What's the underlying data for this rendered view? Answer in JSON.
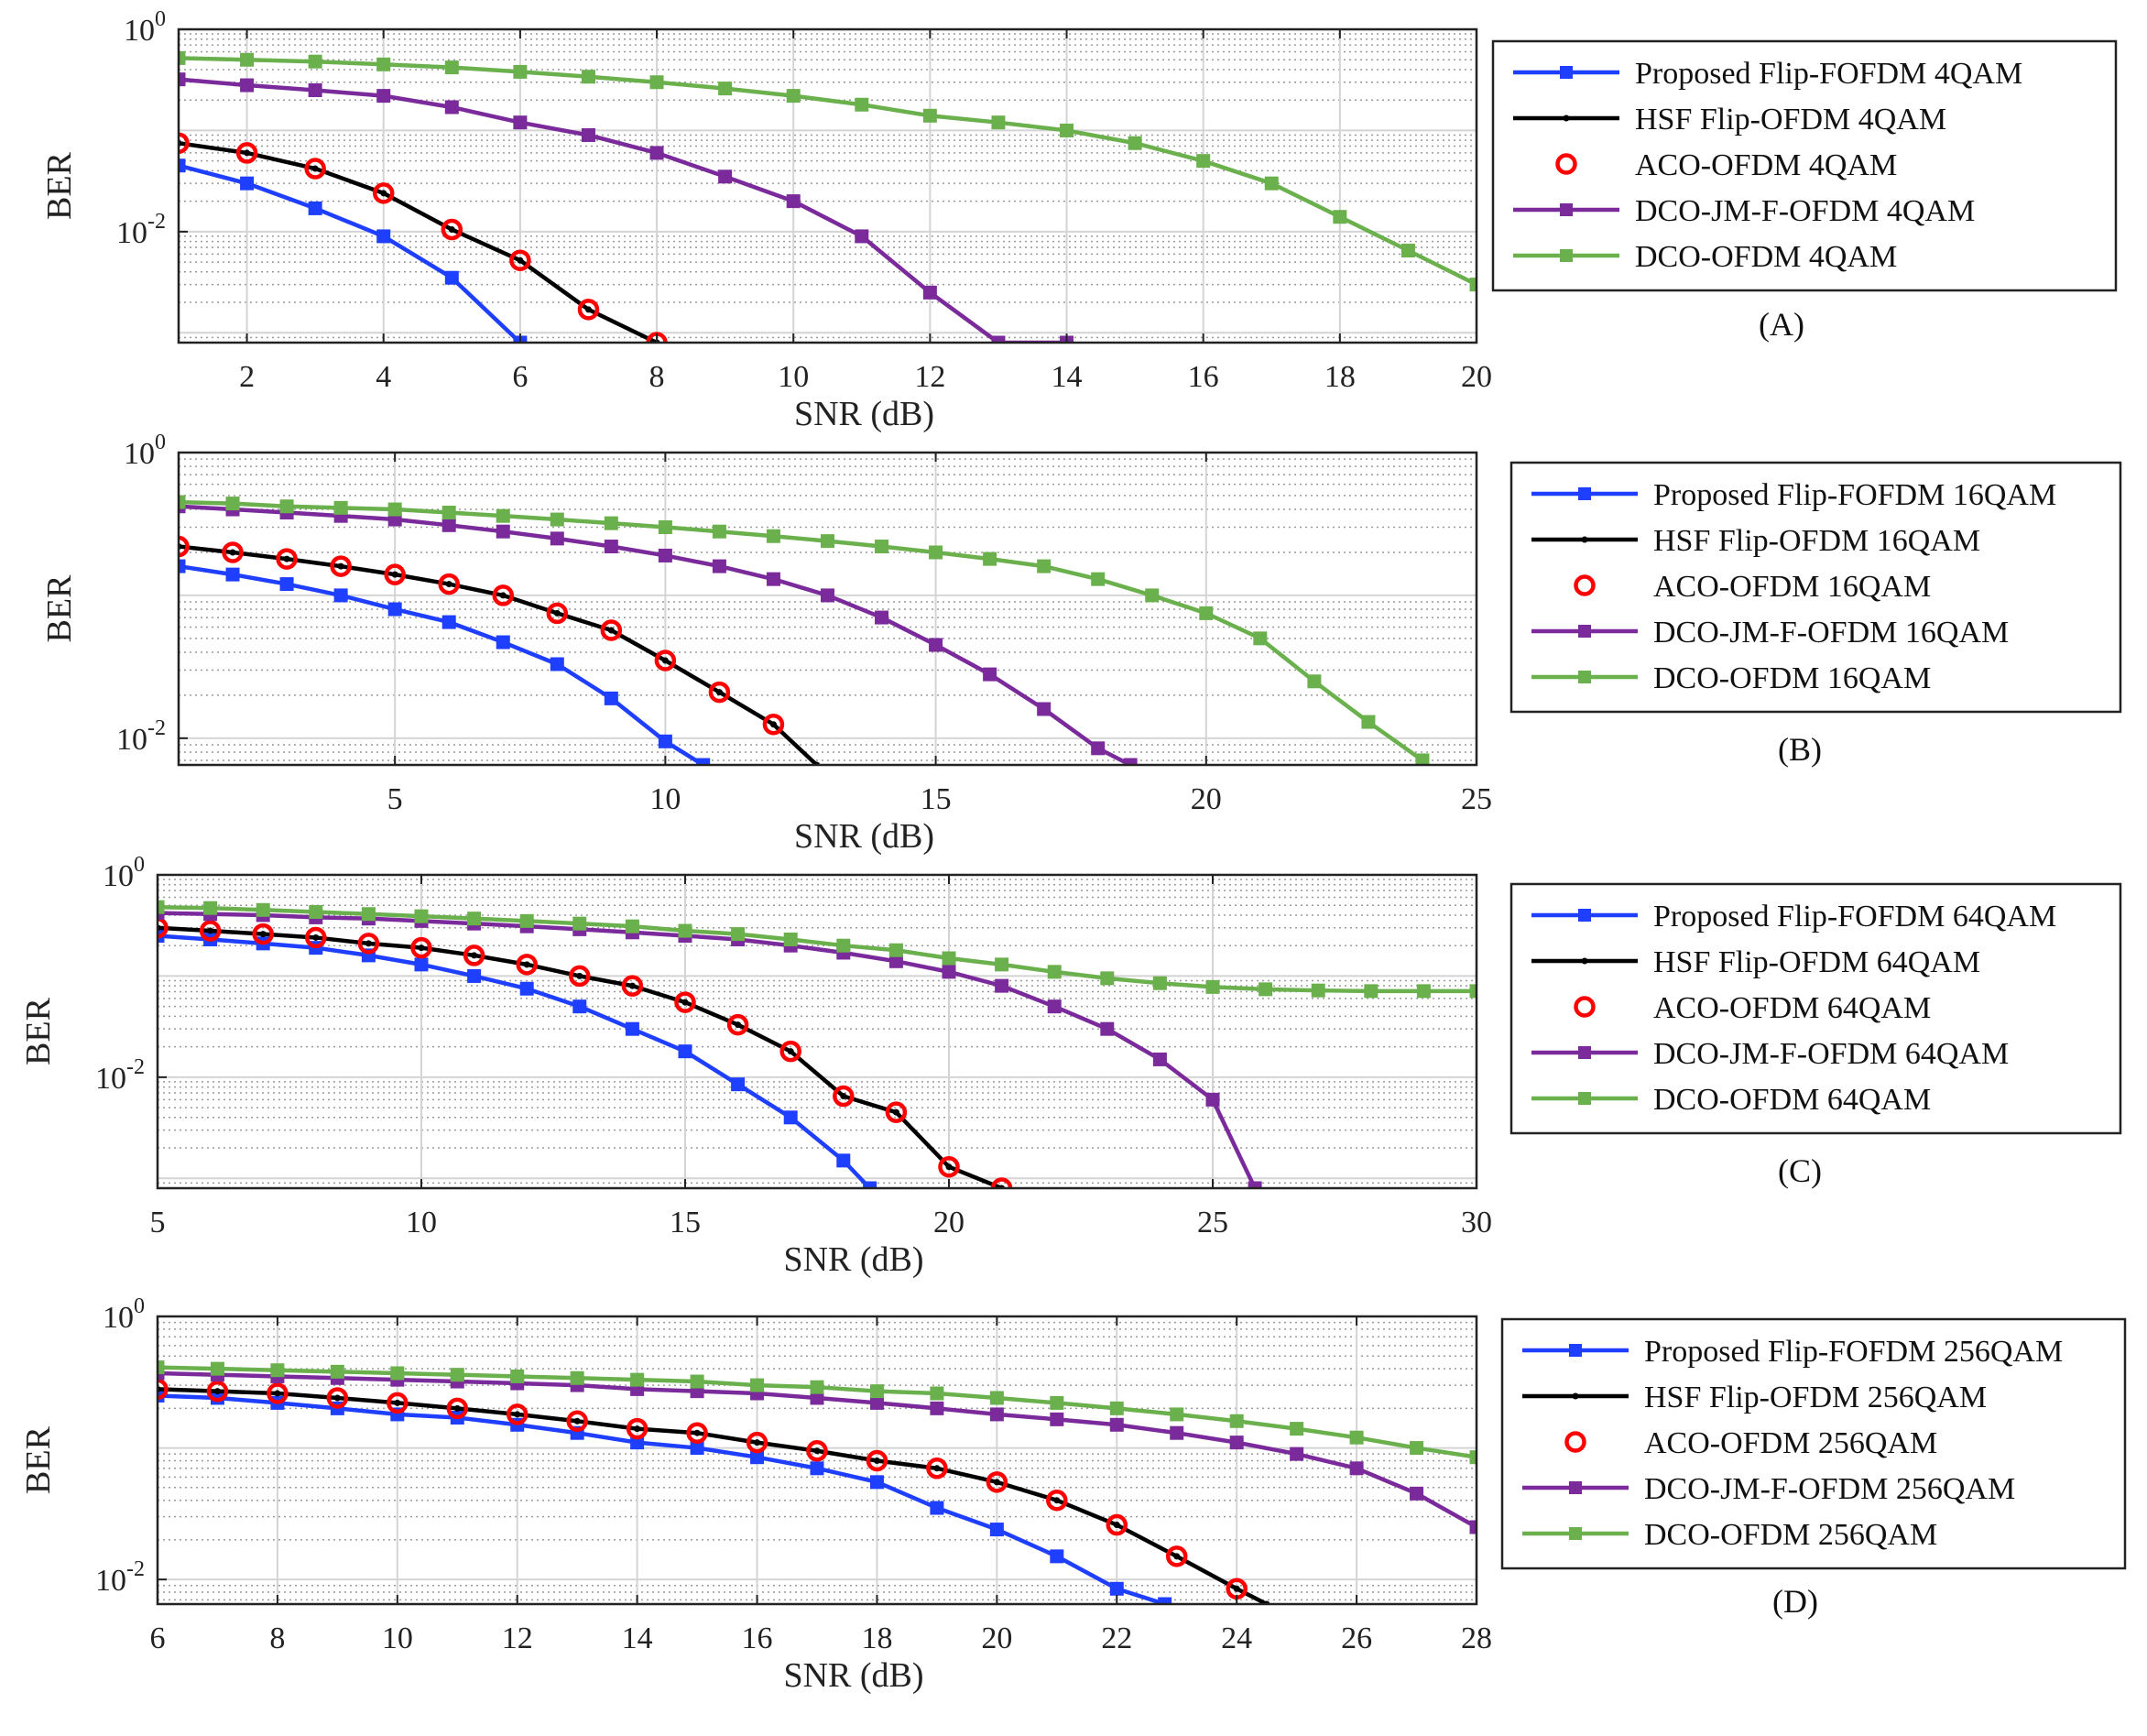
{
  "chart_data": [
    {
      "type": "line",
      "panel_label": "(A)",
      "xlabel": "SNR (dB)",
      "ylabel": "BER",
      "yscale": "log",
      "xlim": [
        1,
        20
      ],
      "ylim": [
        0.0008,
        1
      ],
      "xticks": [
        2,
        4,
        6,
        8,
        10,
        12,
        14,
        16,
        18,
        20
      ],
      "xtick_labels": [
        "2",
        "4",
        "6",
        "8",
        "10",
        "12",
        "14",
        "16",
        "18",
        "20"
      ],
      "ytick_labels": [
        {
          "base": "10",
          "exp": "0"
        },
        {
          "base": "10",
          "exp": "-2"
        }
      ],
      "grid": true,
      "legend_position": "right",
      "series": [
        {
          "name": "Proposed Flip-FOFDM 4QAM",
          "color": "#1f3fff",
          "marker": "square",
          "x": [
            1,
            2,
            3,
            4,
            5,
            6
          ],
          "values": [
            0.045,
            0.03,
            0.017,
            0.009,
            0.0035,
            0.0008
          ]
        },
        {
          "name": "HSF Flip-OFDM 4QAM",
          "color": "#000000",
          "marker": "dot",
          "x": [
            1,
            2,
            3,
            4,
            5,
            6,
            7,
            8
          ],
          "values": [
            0.075,
            0.06,
            0.042,
            0.024,
            0.0105,
            0.0052,
            0.0017,
            0.0008
          ]
        },
        {
          "name": "ACO-OFDM 4QAM",
          "color": "#ff0000",
          "marker": "circle",
          "line": false,
          "x": [
            1,
            2,
            3,
            4,
            5,
            6,
            7,
            8
          ],
          "values": [
            0.075,
            0.06,
            0.042,
            0.024,
            0.0105,
            0.0052,
            0.0017,
            0.0008
          ]
        },
        {
          "name": "DCO-JM-F-OFDM 4QAM",
          "color": "#7a2a9a",
          "marker": "square",
          "x": [
            1,
            2,
            3,
            4,
            5,
            6,
            7,
            8,
            9,
            10,
            11,
            12,
            13,
            14
          ],
          "values": [
            0.32,
            0.28,
            0.25,
            0.22,
            0.17,
            0.12,
            0.09,
            0.06,
            0.035,
            0.02,
            0.009,
            0.0025,
            0.0008,
            0.0008
          ]
        },
        {
          "name": "DCO-OFDM 4QAM",
          "color": "#6ab04c",
          "marker": "square",
          "x": [
            1,
            2,
            3,
            4,
            5,
            6,
            7,
            8,
            9,
            10,
            11,
            12,
            13,
            14,
            15,
            16,
            17,
            18,
            19,
            20
          ],
          "values": [
            0.52,
            0.5,
            0.48,
            0.45,
            0.42,
            0.38,
            0.34,
            0.3,
            0.26,
            0.22,
            0.18,
            0.14,
            0.12,
            0.1,
            0.075,
            0.05,
            0.03,
            0.014,
            0.0065,
            0.003
          ]
        }
      ]
    },
    {
      "type": "line",
      "panel_label": "(B)",
      "xlabel": "SNR (dB)",
      "ylabel": "BER",
      "yscale": "log",
      "xlim": [
        1,
        25
      ],
      "ylim": [
        0.0065,
        1
      ],
      "xticks": [
        5,
        10,
        15,
        20,
        25
      ],
      "xtick_labels": [
        "5",
        "10",
        "15",
        "20",
        "25"
      ],
      "ytick_labels": [
        {
          "base": "10",
          "exp": "0"
        },
        {
          "base": "10",
          "exp": "-2"
        }
      ],
      "grid": true,
      "legend_position": "right",
      "series": [
        {
          "name": "Proposed Flip-FOFDM 16QAM",
          "color": "#1f3fff",
          "marker": "square",
          "x": [
            1,
            2,
            3,
            4,
            5,
            6,
            7,
            8,
            9,
            10,
            10.7
          ],
          "values": [
            0.16,
            0.14,
            0.12,
            0.1,
            0.08,
            0.065,
            0.047,
            0.033,
            0.019,
            0.0095,
            0.0065
          ]
        },
        {
          "name": "HSF Flip-OFDM 16QAM",
          "color": "#000000",
          "marker": "dot",
          "x": [
            1,
            2,
            3,
            4,
            5,
            6,
            7,
            8,
            9,
            10,
            11,
            12,
            12.8
          ],
          "values": [
            0.22,
            0.2,
            0.18,
            0.16,
            0.14,
            0.12,
            0.1,
            0.075,
            0.057,
            0.035,
            0.021,
            0.0125,
            0.0065
          ]
        },
        {
          "name": "ACO-OFDM 16QAM",
          "color": "#ff0000",
          "marker": "circle",
          "line": false,
          "x": [
            1,
            2,
            3,
            4,
            5,
            6,
            7,
            8,
            9,
            10,
            11,
            12
          ],
          "values": [
            0.22,
            0.2,
            0.18,
            0.16,
            0.14,
            0.12,
            0.1,
            0.075,
            0.057,
            0.035,
            0.021,
            0.0125
          ]
        },
        {
          "name": "DCO-JM-F-OFDM 16QAM",
          "color": "#7a2a9a",
          "marker": "square",
          "x": [
            1,
            2,
            3,
            4,
            5,
            6,
            7,
            8,
            9,
            10,
            11,
            12,
            13,
            14,
            15,
            16,
            17,
            18,
            18.6
          ],
          "values": [
            0.42,
            0.4,
            0.38,
            0.36,
            0.34,
            0.31,
            0.28,
            0.25,
            0.22,
            0.19,
            0.16,
            0.13,
            0.1,
            0.07,
            0.045,
            0.028,
            0.016,
            0.0085,
            0.0065
          ]
        },
        {
          "name": "DCO-OFDM 16QAM",
          "color": "#6ab04c",
          "marker": "square",
          "x": [
            1,
            2,
            3,
            4,
            5,
            6,
            7,
            8,
            9,
            10,
            11,
            12,
            13,
            14,
            15,
            16,
            17,
            18,
            19,
            20,
            21,
            22,
            23,
            24
          ],
          "values": [
            0.45,
            0.44,
            0.42,
            0.41,
            0.4,
            0.38,
            0.36,
            0.34,
            0.32,
            0.3,
            0.28,
            0.26,
            0.24,
            0.22,
            0.2,
            0.18,
            0.16,
            0.13,
            0.1,
            0.075,
            0.05,
            0.025,
            0.013,
            0.007
          ]
        }
      ]
    },
    {
      "type": "line",
      "panel_label": "(C)",
      "xlabel": "SNR (dB)",
      "ylabel": "BER",
      "yscale": "log",
      "xlim": [
        5,
        30
      ],
      "ylim": [
        0.0008,
        1
      ],
      "xticks": [
        5,
        10,
        15,
        20,
        25,
        30
      ],
      "xtick_labels": [
        "5",
        "10",
        "15",
        "20",
        "25",
        "30"
      ],
      "ytick_labels": [
        {
          "base": "10",
          "exp": "0"
        },
        {
          "base": "10",
          "exp": "-2"
        }
      ],
      "grid": true,
      "legend_position": "right",
      "series": [
        {
          "name": "Proposed Flip-FOFDM 64QAM",
          "color": "#1f3fff",
          "marker": "square",
          "x": [
            5,
            6,
            7,
            8,
            9,
            10,
            11,
            12,
            13,
            14,
            15,
            16,
            17,
            18,
            18.5
          ],
          "values": [
            0.25,
            0.23,
            0.21,
            0.19,
            0.16,
            0.13,
            0.1,
            0.075,
            0.05,
            0.03,
            0.018,
            0.0085,
            0.004,
            0.0015,
            0.0008
          ]
        },
        {
          "name": "HSF Flip-OFDM 64QAM",
          "color": "#000000",
          "marker": "dot",
          "x": [
            5,
            6,
            7,
            8,
            9,
            10,
            11,
            12,
            13,
            14,
            15,
            16,
            17,
            18,
            19,
            20,
            21
          ],
          "values": [
            0.3,
            0.28,
            0.26,
            0.24,
            0.21,
            0.19,
            0.16,
            0.13,
            0.1,
            0.08,
            0.055,
            0.033,
            0.018,
            0.0065,
            0.0045,
            0.0013,
            0.0008
          ]
        },
        {
          "name": "ACO-OFDM 64QAM",
          "color": "#ff0000",
          "marker": "circle",
          "line": false,
          "x": [
            5,
            6,
            7,
            8,
            9,
            10,
            11,
            12,
            13,
            14,
            15,
            16,
            17,
            18,
            19,
            20,
            21
          ],
          "values": [
            0.3,
            0.28,
            0.26,
            0.24,
            0.21,
            0.19,
            0.16,
            0.13,
            0.1,
            0.08,
            0.055,
            0.033,
            0.018,
            0.0065,
            0.0045,
            0.0013,
            0.0008
          ]
        },
        {
          "name": "DCO-JM-F-OFDM 64QAM",
          "color": "#7a2a9a",
          "marker": "square",
          "x": [
            5,
            6,
            7,
            8,
            9,
            10,
            11,
            12,
            13,
            14,
            15,
            16,
            17,
            18,
            19,
            20,
            21,
            22,
            23,
            24,
            25,
            25.8
          ],
          "values": [
            0.42,
            0.41,
            0.4,
            0.38,
            0.37,
            0.35,
            0.33,
            0.31,
            0.29,
            0.27,
            0.25,
            0.23,
            0.2,
            0.17,
            0.14,
            0.11,
            0.08,
            0.05,
            0.03,
            0.015,
            0.006,
            0.0008
          ]
        },
        {
          "name": "DCO-OFDM 64QAM",
          "color": "#6ab04c",
          "marker": "square",
          "x": [
            5,
            6,
            7,
            8,
            9,
            10,
            11,
            12,
            13,
            14,
            15,
            16,
            17,
            18,
            19,
            20,
            21,
            22,
            23,
            24,
            25,
            26,
            27,
            28,
            29,
            30
          ],
          "values": [
            0.48,
            0.47,
            0.45,
            0.43,
            0.41,
            0.39,
            0.37,
            0.35,
            0.33,
            0.31,
            0.28,
            0.26,
            0.23,
            0.2,
            0.18,
            0.15,
            0.13,
            0.11,
            0.095,
            0.085,
            0.078,
            0.074,
            0.072,
            0.071,
            0.071,
            0.071
          ]
        }
      ]
    },
    {
      "type": "line",
      "panel_label": "(D)",
      "xlabel": "SNR (dB)",
      "ylabel": "BER",
      "yscale": "log",
      "xlim": [
        6,
        28
      ],
      "ylim": [
        0.0065,
        1
      ],
      "xticks": [
        6,
        8,
        10,
        12,
        14,
        16,
        18,
        20,
        22,
        24,
        26,
        28
      ],
      "xtick_labels": [
        "6",
        "8",
        "10",
        "12",
        "14",
        "16",
        "18",
        "20",
        "22",
        "24",
        "26",
        "28"
      ],
      "ytick_labels": [
        {
          "base": "10",
          "exp": "0"
        },
        {
          "base": "10",
          "exp": "-2"
        }
      ],
      "grid": true,
      "legend_position": "right",
      "series": [
        {
          "name": "Proposed Flip-FOFDM 256QAM",
          "color": "#1f3fff",
          "marker": "square",
          "x": [
            6,
            7,
            8,
            9,
            10,
            11,
            12,
            13,
            14,
            15,
            16,
            17,
            18,
            19,
            20,
            21,
            22,
            22.8
          ],
          "values": [
            0.25,
            0.24,
            0.22,
            0.2,
            0.18,
            0.17,
            0.15,
            0.13,
            0.11,
            0.1,
            0.085,
            0.07,
            0.055,
            0.035,
            0.024,
            0.015,
            0.0085,
            0.0065
          ]
        },
        {
          "name": "HSF Flip-OFDM 256QAM",
          "color": "#000000",
          "marker": "dot",
          "x": [
            6,
            7,
            8,
            9,
            10,
            11,
            12,
            13,
            14,
            15,
            16,
            17,
            18,
            19,
            20,
            21,
            22,
            23,
            24,
            24.5
          ],
          "values": [
            0.28,
            0.27,
            0.26,
            0.24,
            0.22,
            0.2,
            0.18,
            0.16,
            0.14,
            0.13,
            0.11,
            0.095,
            0.08,
            0.07,
            0.055,
            0.04,
            0.026,
            0.015,
            0.0085,
            0.0065
          ]
        },
        {
          "name": "ACO-OFDM 256QAM",
          "color": "#ff0000",
          "marker": "circle",
          "line": false,
          "x": [
            6,
            7,
            8,
            9,
            10,
            11,
            12,
            13,
            14,
            15,
            16,
            17,
            18,
            19,
            20,
            21,
            22,
            23,
            24
          ],
          "values": [
            0.28,
            0.27,
            0.26,
            0.24,
            0.22,
            0.2,
            0.18,
            0.16,
            0.14,
            0.13,
            0.11,
            0.095,
            0.08,
            0.07,
            0.055,
            0.04,
            0.026,
            0.015,
            0.0085
          ]
        },
        {
          "name": "DCO-JM-F-OFDM 256QAM",
          "color": "#7a2a9a",
          "marker": "square",
          "x": [
            6,
            7,
            8,
            9,
            10,
            11,
            12,
            13,
            14,
            15,
            16,
            17,
            18,
            19,
            20,
            21,
            22,
            23,
            24,
            25,
            26,
            27,
            28
          ],
          "values": [
            0.37,
            0.36,
            0.35,
            0.34,
            0.33,
            0.32,
            0.31,
            0.3,
            0.28,
            0.27,
            0.26,
            0.24,
            0.22,
            0.2,
            0.18,
            0.165,
            0.15,
            0.13,
            0.11,
            0.09,
            0.07,
            0.045,
            0.025
          ]
        },
        {
          "name": "DCO-OFDM 256QAM",
          "color": "#6ab04c",
          "marker": "square",
          "x": [
            6,
            7,
            8,
            9,
            10,
            11,
            12,
            13,
            14,
            15,
            16,
            17,
            18,
            19,
            20,
            21,
            22,
            23,
            24,
            25,
            26,
            27,
            28
          ],
          "values": [
            0.41,
            0.4,
            0.39,
            0.38,
            0.37,
            0.36,
            0.35,
            0.34,
            0.33,
            0.32,
            0.3,
            0.29,
            0.27,
            0.26,
            0.24,
            0.22,
            0.2,
            0.18,
            0.16,
            0.14,
            0.12,
            0.1,
            0.085
          ]
        }
      ]
    }
  ]
}
